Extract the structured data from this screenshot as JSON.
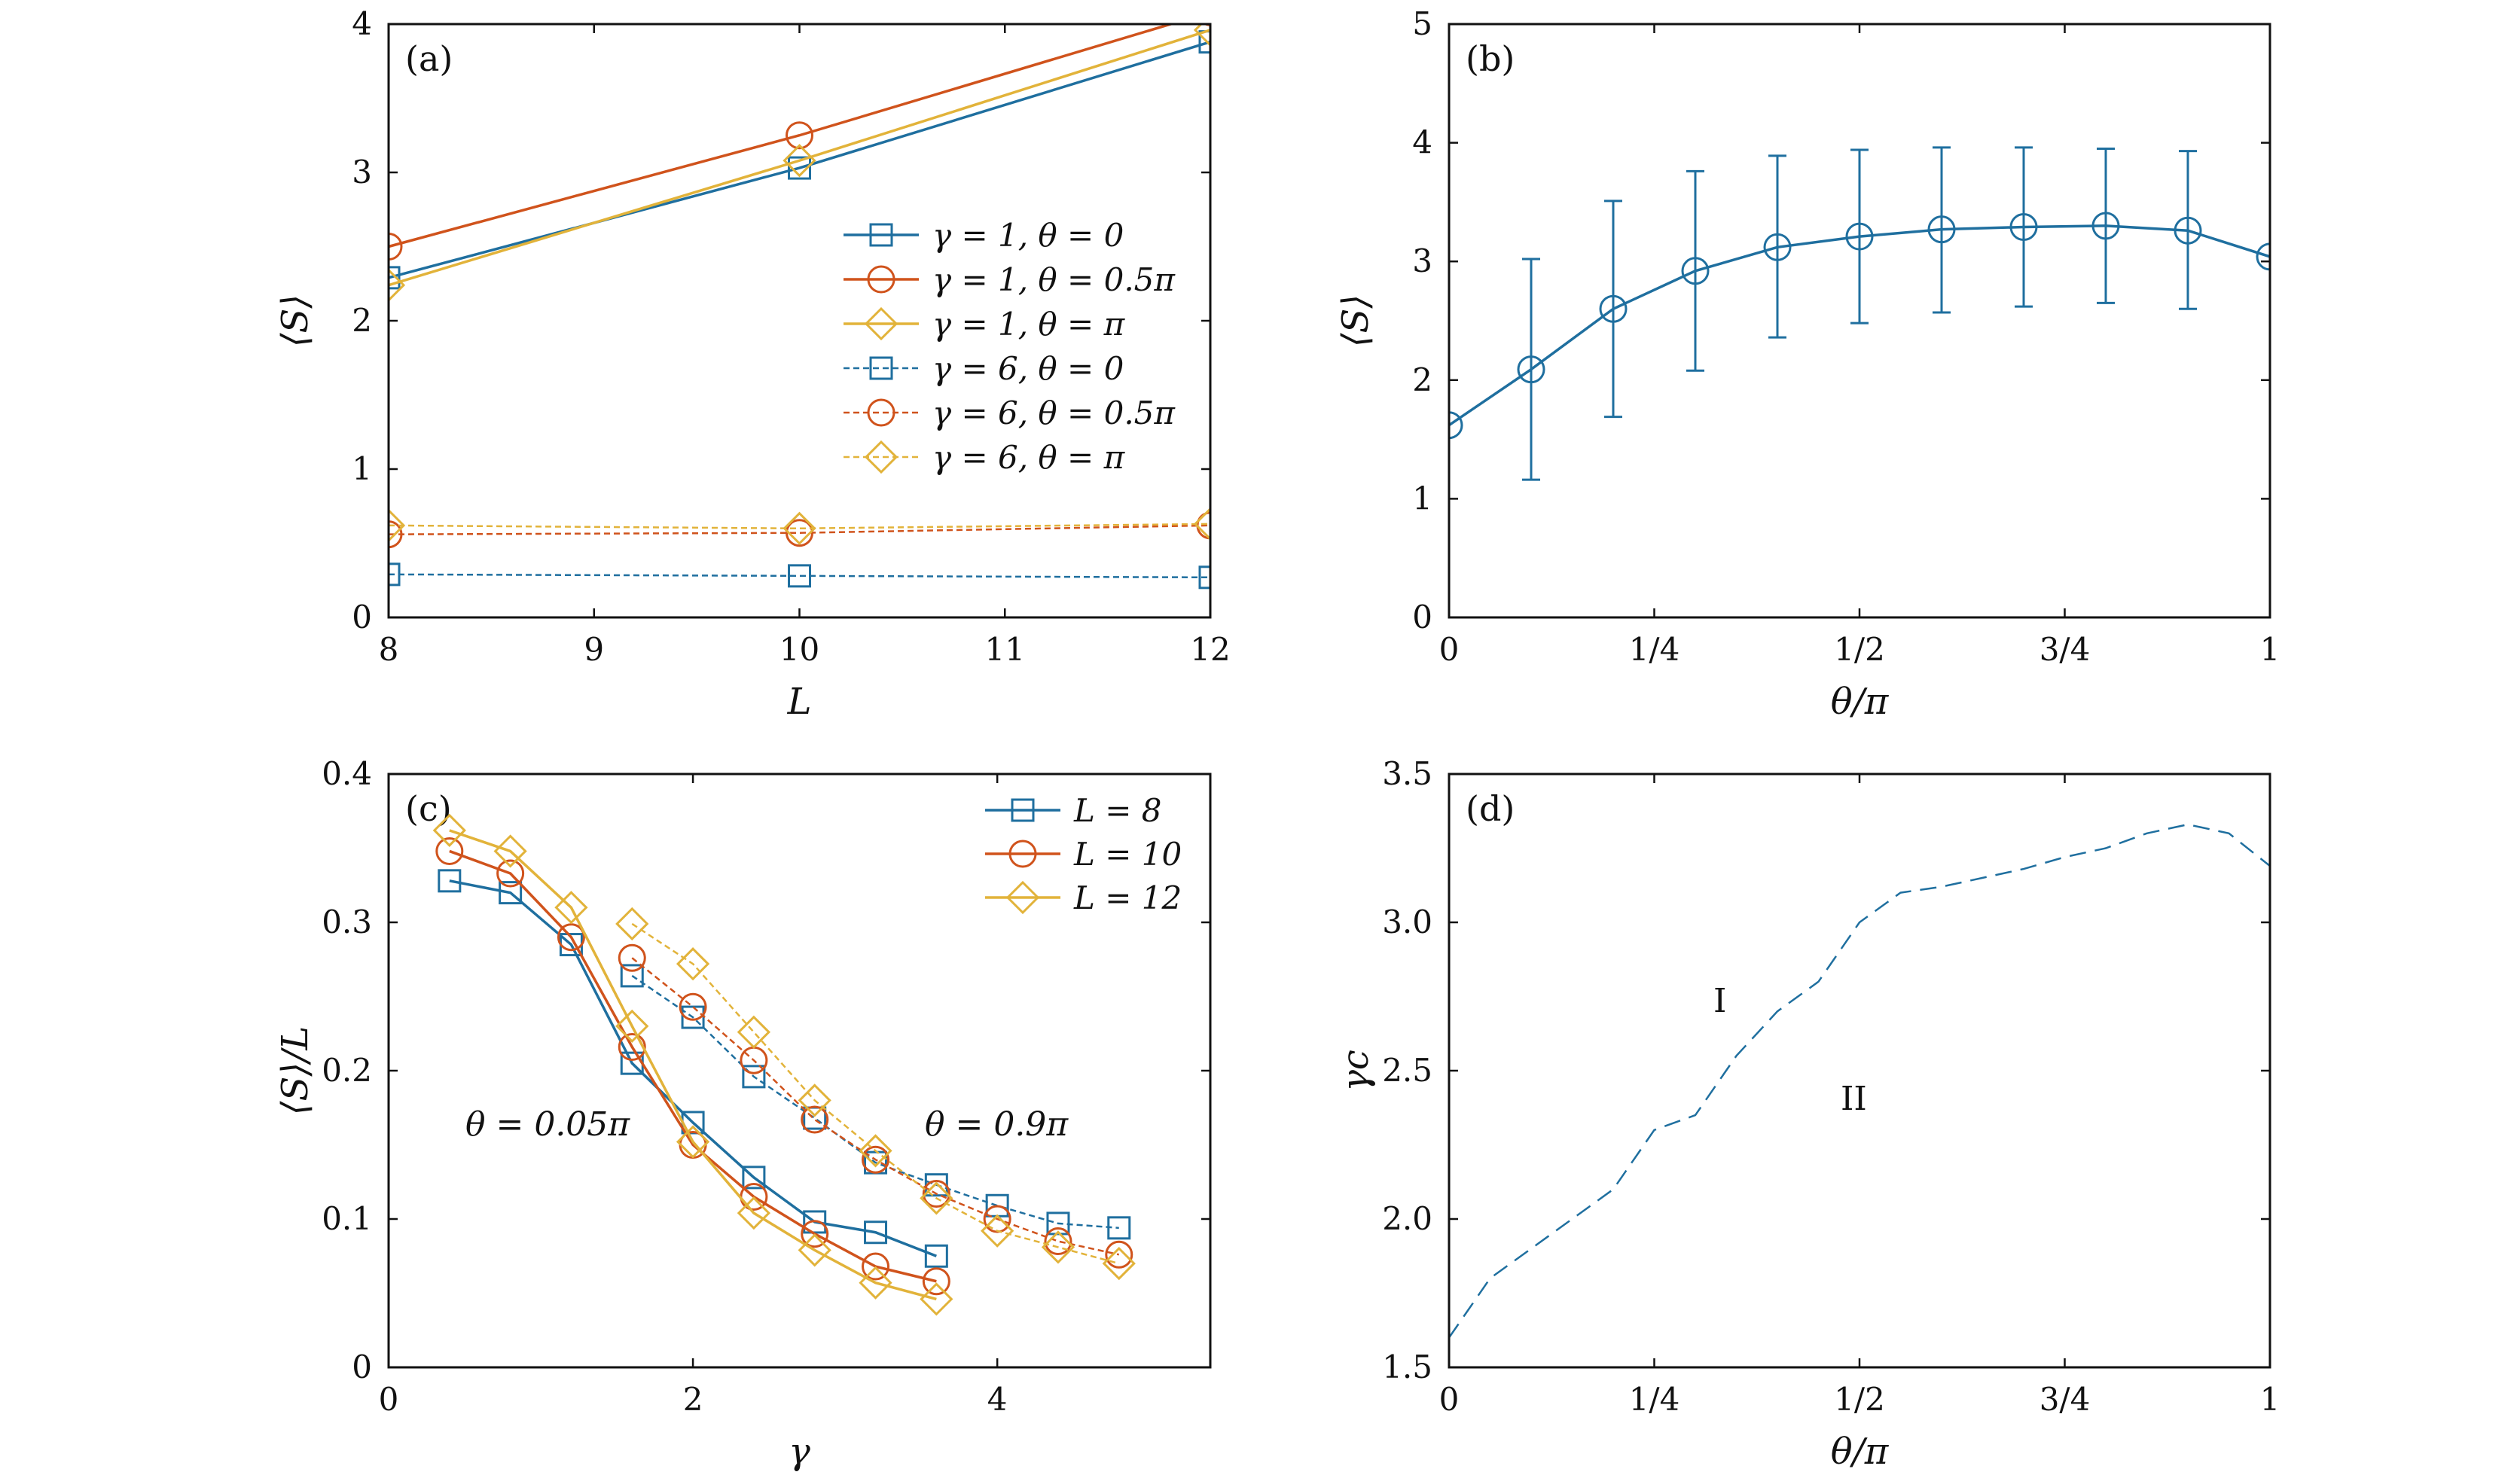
{
  "colors": {
    "blue": "#1f6f9f",
    "orange": "#d0531c",
    "yellow": "#e2b33a",
    "axis": "#111111"
  },
  "chart_data": [
    {
      "id": "a",
      "type": "line",
      "panel_label": "(a)",
      "xlabel": "L",
      "ylabel": "⟨S⟩",
      "xlim": [
        8,
        12
      ],
      "ylim": [
        0,
        4
      ],
      "xticks": [
        8,
        9,
        10,
        11,
        12
      ],
      "yticks": [
        0,
        1,
        2,
        3,
        4
      ],
      "xtick_labels": [
        "8",
        "9",
        "10",
        "11",
        "12"
      ],
      "ytick_labels": [
        "0",
        "1",
        "2",
        "3",
        "4"
      ],
      "legend_position": "middle-right",
      "x": [
        8,
        10,
        12
      ],
      "series": [
        {
          "name": "γ = 1,  θ = 0",
          "color": "#1f6f9f",
          "marker": "square",
          "dashed": false,
          "values": [
            2.29,
            3.03,
            3.88
          ]
        },
        {
          "name": "γ = 1,  θ = 0.5π",
          "color": "#d0531c",
          "marker": "circle",
          "dashed": false,
          "values": [
            2.5,
            3.25,
            4.08
          ]
        },
        {
          "name": "γ = 1,  θ = π",
          "color": "#e2b33a",
          "marker": "diamond",
          "dashed": false,
          "values": [
            2.24,
            3.08,
            3.96
          ]
        },
        {
          "name": "γ = 6,  θ = 0",
          "color": "#1f6f9f",
          "marker": "square",
          "dashed": true,
          "values": [
            0.29,
            0.28,
            0.27
          ]
        },
        {
          "name": "γ = 6,  θ = 0.5π",
          "color": "#d0531c",
          "marker": "circle",
          "dashed": true,
          "values": [
            0.56,
            0.57,
            0.62
          ]
        },
        {
          "name": "γ = 6,  θ = π",
          "color": "#e2b33a",
          "marker": "diamond",
          "dashed": true,
          "values": [
            0.62,
            0.6,
            0.63
          ]
        }
      ]
    },
    {
      "id": "b",
      "type": "line",
      "panel_label": "(b)",
      "xlabel": "θ/π",
      "ylabel": "⟨S⟩",
      "xlim": [
        0,
        1
      ],
      "ylim": [
        0,
        5
      ],
      "xticks": [
        0,
        0.25,
        0.5,
        0.75,
        1
      ],
      "yticks": [
        0,
        1,
        2,
        3,
        4,
        5
      ],
      "xtick_labels": [
        "0",
        "1/4",
        "1/2",
        "3/4",
        "1"
      ],
      "ytick_labels": [
        "0",
        "1",
        "2",
        "3",
        "4",
        "5"
      ],
      "series": [
        {
          "color": "#1f6f9f",
          "marker": "circle",
          "x": [
            0,
            0.1,
            0.2,
            0.3,
            0.4,
            0.5,
            0.6,
            0.7,
            0.8,
            0.9,
            1.0
          ],
          "values": [
            1.62,
            2.09,
            2.6,
            2.92,
            3.12,
            3.21,
            3.27,
            3.29,
            3.3,
            3.26,
            3.04
          ],
          "err_low": [
            1.62,
            1.16,
            1.69,
            2.08,
            2.36,
            2.48,
            2.57,
            2.62,
            2.65,
            2.6,
            3.04
          ],
          "err_high": [
            1.62,
            3.02,
            3.51,
            3.76,
            3.89,
            3.94,
            3.96,
            3.96,
            3.95,
            3.93,
            3.04
          ]
        }
      ]
    },
    {
      "id": "c",
      "type": "line",
      "panel_label": "(c)",
      "xlabel": "γ",
      "ylabel": "⟨S⟩/L",
      "xlim": [
        0,
        5.4
      ],
      "ylim": [
        0,
        0.4
      ],
      "xticks": [
        0,
        2,
        4
      ],
      "yticks": [
        0,
        0.1,
        0.2,
        0.3,
        0.4
      ],
      "xtick_labels": [
        "0",
        "2",
        "4"
      ],
      "ytick_labels": [
        "0",
        "0.1",
        "0.2",
        "0.3",
        "0.4"
      ],
      "legend_position": "top-right",
      "annotations": [
        "θ = 0.05π",
        "θ = 0.9π"
      ],
      "series": [
        {
          "name": "L = 8",
          "color": "#1f6f9f",
          "marker": "square",
          "dashed": false,
          "x": [
            0.4,
            0.8,
            1.2,
            1.6,
            2.0,
            2.4,
            2.8,
            3.2,
            3.6
          ],
          "values": [
            0.328,
            0.32,
            0.285,
            0.205,
            0.165,
            0.128,
            0.098,
            0.091,
            0.075
          ]
        },
        {
          "name": "L = 10",
          "color": "#d0531c",
          "marker": "circle",
          "dashed": false,
          "x": [
            0.4,
            0.8,
            1.2,
            1.6,
            2.0,
            2.4,
            2.8,
            3.2,
            3.6
          ],
          "values": [
            0.348,
            0.333,
            0.29,
            0.216,
            0.15,
            0.115,
            0.09,
            0.068,
            0.058
          ]
        },
        {
          "name": "L = 12",
          "color": "#e2b33a",
          "marker": "diamond",
          "dashed": false,
          "x": [
            0.4,
            0.8,
            1.2,
            1.6,
            2.0,
            2.4,
            2.8,
            3.2,
            3.6
          ],
          "values": [
            0.362,
            0.348,
            0.31,
            0.23,
            0.152,
            0.104,
            0.079,
            0.057,
            0.046
          ]
        },
        {
          "color": "#1f6f9f",
          "marker": "square",
          "dashed": true,
          "x": [
            1.6,
            2.0,
            2.4,
            2.8,
            3.2,
            3.6,
            4.0,
            4.4,
            4.8
          ],
          "values": [
            0.264,
            0.236,
            0.196,
            0.168,
            0.138,
            0.123,
            0.109,
            0.097,
            0.094
          ]
        },
        {
          "color": "#d0531c",
          "marker": "circle",
          "dashed": true,
          "x": [
            1.6,
            2.0,
            2.4,
            2.8,
            3.2,
            3.6,
            4.0,
            4.4,
            4.8
          ],
          "values": [
            0.276,
            0.243,
            0.207,
            0.167,
            0.14,
            0.117,
            0.1,
            0.085,
            0.076
          ]
        },
        {
          "color": "#e2b33a",
          "marker": "diamond",
          "dashed": true,
          "x": [
            1.6,
            2.0,
            2.4,
            2.8,
            3.2,
            3.6,
            4.0,
            4.4,
            4.8
          ],
          "values": [
            0.299,
            0.272,
            0.226,
            0.18,
            0.146,
            0.114,
            0.092,
            0.081,
            0.07
          ]
        }
      ]
    },
    {
      "id": "d",
      "type": "line",
      "panel_label": "(d)",
      "xlabel": "θ/π",
      "ylabel": "γc",
      "xlim": [
        0,
        1
      ],
      "ylim": [
        1.5,
        3.5
      ],
      "xticks": [
        0,
        0.25,
        0.5,
        0.75,
        1
      ],
      "yticks": [
        1.5,
        2.0,
        2.5,
        3.0,
        3.5
      ],
      "xtick_labels": [
        "0",
        "1/4",
        "1/2",
        "3/4",
        "1"
      ],
      "ytick_labels": [
        "1.5",
        "2.0",
        "2.5",
        "3.0",
        "3.5"
      ],
      "annotations": [
        "I",
        "II"
      ],
      "series": [
        {
          "color": "#1f6f9f",
          "dashed": true,
          "marker": "none",
          "x": [
            0,
            0.05,
            0.1,
            0.15,
            0.2,
            0.25,
            0.3,
            0.35,
            0.4,
            0.45,
            0.5,
            0.55,
            0.6,
            0.65,
            0.7,
            0.75,
            0.8,
            0.85,
            0.9,
            0.95,
            1.0
          ],
          "values": [
            1.6,
            1.8,
            1.9,
            2.0,
            2.1,
            2.3,
            2.35,
            2.55,
            2.7,
            2.8,
            3.0,
            3.1,
            3.12,
            3.15,
            3.18,
            3.22,
            3.25,
            3.3,
            3.33,
            3.3,
            3.19
          ]
        }
      ]
    }
  ]
}
